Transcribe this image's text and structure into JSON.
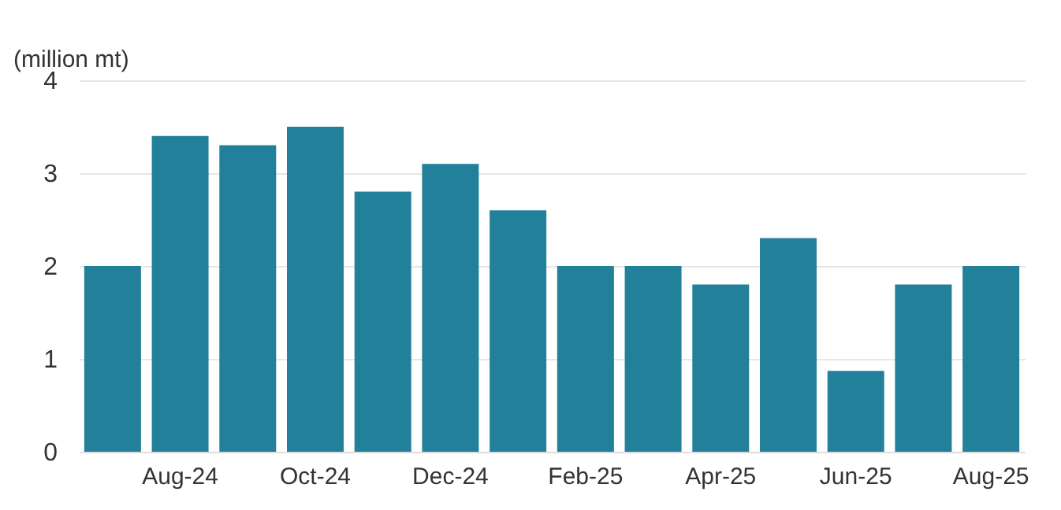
{
  "chart_data": {
    "type": "bar",
    "ylabel": "(million mt)",
    "categories": [
      null,
      "Aug-24",
      null,
      "Oct-24",
      null,
      "Dec-24",
      null,
      "Feb-25",
      null,
      "Apr-25",
      null,
      "Jun-25",
      null,
      "Aug-25"
    ],
    "values": [
      2.0,
      3.4,
      3.3,
      3.5,
      2.8,
      3.1,
      2.6,
      2.0,
      2.0,
      1.8,
      2.3,
      0.87,
      1.8,
      2.0
    ],
    "color": "#23809a",
    "ylim": [
      0,
      4
    ],
    "yticks": [
      0,
      1,
      2,
      3,
      4
    ],
    "grid": "y"
  }
}
